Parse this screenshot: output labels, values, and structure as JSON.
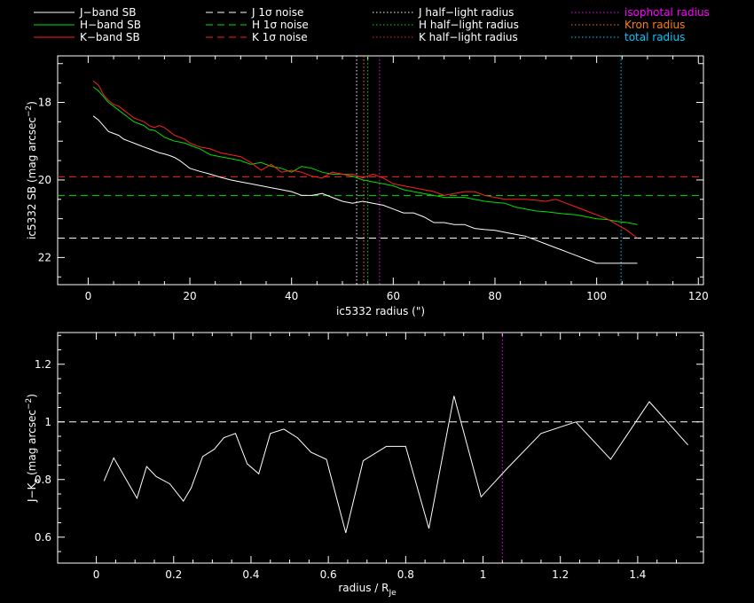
{
  "colors": {
    "background": "#000000",
    "frame": "#ffffff",
    "J": "#ffffff",
    "H": "#00e000",
    "K": "#ff2020",
    "isophotal": "#ff00ff",
    "kron": "#ff8000",
    "total": "#00c8ff"
  },
  "legend": {
    "col1": [
      {
        "label": "J−band SB",
        "style": "solid",
        "color": "#ffffff"
      },
      {
        "label": "H−band SB",
        "style": "solid",
        "color": "#00e000"
      },
      {
        "label": "K−band SB",
        "style": "solid",
        "color": "#ff2020"
      }
    ],
    "col2": [
      {
        "label": "J 1σ noise",
        "style": "dashed",
        "color": "#ffffff"
      },
      {
        "label": "H 1σ noise",
        "style": "dashed",
        "color": "#00e000"
      },
      {
        "label": "K 1σ noise",
        "style": "dashed",
        "color": "#ff2020"
      }
    ],
    "col3": [
      {
        "label": "J half−light radius",
        "style": "dotted",
        "color": "#ffffff"
      },
      {
        "label": "H half−light radius",
        "style": "dotted",
        "color": "#00e000"
      },
      {
        "label": "K half−light radius",
        "style": "dotted",
        "color": "#ff2020"
      }
    ],
    "col4": [
      {
        "label": "isophotal radius",
        "color": "#ff00ff"
      },
      {
        "label": "Kron radius",
        "color": "#ff8000"
      },
      {
        "label": "total radius",
        "color": "#00c8ff"
      }
    ]
  },
  "chart_data": [
    {
      "type": "line",
      "xlabel": "ic5332 radius (\")",
      "ylabel": "ic5332 SB (mag arcsec",
      "ylabel_sup": "−2",
      "ylabel_end": ")",
      "xlim": [
        -6,
        121
      ],
      "ylim": [
        22.7,
        16.8
      ],
      "xticks": [
        0,
        20,
        40,
        60,
        80,
        100,
        120
      ],
      "yticks": [
        18,
        20,
        22
      ],
      "series": [
        {
          "name": "J−band SB",
          "color": "#ffffff",
          "x": [
            1,
            2,
            3,
            4,
            5,
            6,
            7,
            8,
            9,
            10,
            11,
            12,
            13,
            14,
            15,
            16,
            17,
            18,
            19,
            20,
            22,
            24,
            26,
            28,
            30,
            32,
            34,
            36,
            38,
            40,
            42,
            44,
            46,
            48,
            50,
            52,
            54,
            56,
            58,
            60,
            62,
            64,
            66,
            68,
            70,
            72,
            74,
            76,
            78,
            80,
            82,
            84,
            86,
            88,
            90,
            92,
            94,
            96,
            98,
            100,
            102,
            104,
            106,
            108
          ],
          "y": [
            18.35,
            18.45,
            18.6,
            18.75,
            18.8,
            18.85,
            18.95,
            19.0,
            19.05,
            19.1,
            19.15,
            19.2,
            19.25,
            19.3,
            19.33,
            19.37,
            19.42,
            19.5,
            19.6,
            19.7,
            19.78,
            19.85,
            19.93,
            20.0,
            20.05,
            20.1,
            20.15,
            20.2,
            20.25,
            20.3,
            20.4,
            20.4,
            20.35,
            20.45,
            20.55,
            20.6,
            20.55,
            20.6,
            20.65,
            20.75,
            20.85,
            20.85,
            20.95,
            21.1,
            21.1,
            21.15,
            21.15,
            21.25,
            21.28,
            21.3,
            21.35,
            21.4,
            21.45,
            21.55,
            21.65,
            21.75,
            21.85,
            21.95,
            22.05,
            22.15,
            22.15,
            22.15,
            22.15,
            22.15
          ]
        },
        {
          "name": "H−band SB",
          "color": "#00e000",
          "x": [
            1,
            2,
            3,
            4,
            5,
            6,
            7,
            8,
            9,
            10,
            11,
            12,
            13,
            14,
            15,
            16,
            17,
            18,
            19,
            20,
            22,
            24,
            26,
            28,
            30,
            32,
            34,
            36,
            38,
            40,
            42,
            44,
            46,
            48,
            50,
            52,
            54,
            56,
            58,
            60,
            62,
            64,
            66,
            68,
            70,
            72,
            74,
            76,
            78,
            80,
            82,
            84,
            86,
            88,
            90,
            92,
            94,
            96,
            98,
            100,
            102,
            104,
            106,
            108
          ],
          "y": [
            17.6,
            17.7,
            17.85,
            18.0,
            18.1,
            18.2,
            18.3,
            18.4,
            18.5,
            18.55,
            18.6,
            18.7,
            18.72,
            18.8,
            18.9,
            18.95,
            19.0,
            19.02,
            19.05,
            19.1,
            19.2,
            19.35,
            19.4,
            19.45,
            19.5,
            19.6,
            19.55,
            19.65,
            19.7,
            19.8,
            19.65,
            19.7,
            19.8,
            19.85,
            19.85,
            19.9,
            20.0,
            20.05,
            20.1,
            20.15,
            20.25,
            20.3,
            20.35,
            20.4,
            20.45,
            20.45,
            20.45,
            20.5,
            20.55,
            20.58,
            20.6,
            20.7,
            20.75,
            20.8,
            20.82,
            20.85,
            20.88,
            20.9,
            20.95,
            21.0,
            21.02,
            21.07,
            21.1,
            21.15
          ]
        },
        {
          "name": "K−band SB",
          "color": "#ff2020",
          "x": [
            1,
            2,
            3,
            4,
            5,
            6,
            7,
            8,
            9,
            10,
            11,
            12,
            13,
            14,
            15,
            16,
            17,
            18,
            19,
            20,
            22,
            24,
            26,
            28,
            30,
            32,
            34,
            36,
            38,
            40,
            42,
            44,
            46,
            48,
            50,
            52,
            54,
            56,
            58,
            60,
            62,
            64,
            66,
            68,
            70,
            72,
            74,
            76,
            78,
            80,
            82,
            84,
            86,
            88,
            90,
            92,
            94,
            96,
            98,
            100,
            102,
            104,
            106,
            108
          ],
          "y": [
            17.45,
            17.55,
            17.8,
            17.95,
            18.05,
            18.1,
            18.2,
            18.3,
            18.4,
            18.45,
            18.5,
            18.6,
            18.65,
            18.6,
            18.65,
            18.75,
            18.85,
            18.9,
            18.95,
            19.05,
            19.15,
            19.2,
            19.3,
            19.35,
            19.4,
            19.55,
            19.75,
            19.6,
            19.8,
            19.75,
            19.8,
            19.9,
            19.95,
            19.8,
            19.85,
            19.85,
            19.95,
            19.85,
            19.95,
            20.1,
            20.15,
            20.2,
            20.25,
            20.3,
            20.4,
            20.35,
            20.3,
            20.3,
            20.4,
            20.45,
            20.5,
            20.5,
            20.5,
            20.52,
            20.55,
            20.5,
            20.6,
            20.7,
            20.8,
            20.9,
            21.0,
            21.15,
            21.3,
            21.5
          ]
        }
      ],
      "noise_levels": [
        {
          "name": "J 1σ noise",
          "color": "#ffffff",
          "y": 21.5
        },
        {
          "name": "H 1σ noise",
          "color": "#00e000",
          "y": 20.4
        },
        {
          "name": "K 1σ noise",
          "color": "#ff2020",
          "y": 19.92
        }
      ],
      "radii": [
        {
          "name": "J half−light radius",
          "color": "#ffffff",
          "x": 52.8
        },
        {
          "name": "Kron radius",
          "color": "#ff8000",
          "x": 54.2
        },
        {
          "name": "H half−light radius",
          "color": "#00e000",
          "x": 55.0
        },
        {
          "name": "isophotal radius",
          "color": "#ff00ff",
          "x": 57.3
        },
        {
          "name": "total radius",
          "color": "#00c8ff",
          "x": 104.8
        }
      ]
    },
    {
      "type": "line",
      "xlabel": "radius / R",
      "xlabel_sub": "Je",
      "ylabel": "J−K",
      "ylabel_sub": "s",
      "ylabel_mid": " (mag arcsec",
      "ylabel_sup": "−2",
      "ylabel_end": ")",
      "xlim": [
        -0.1,
        1.57
      ],
      "ylim": [
        0.51,
        1.31
      ],
      "xticks": [
        0,
        0.2,
        0.4,
        0.6,
        0.8,
        1.0,
        1.2,
        1.4
      ],
      "xtick_labels": [
        "0",
        "0.2",
        "0.4",
        "0.6",
        "0.8",
        "1",
        "1.2",
        "1.4"
      ],
      "yticks": [
        0.6,
        0.8,
        1.0,
        1.2
      ],
      "ytick_labels": [
        "0.6",
        "0.8",
        "1",
        "1.2"
      ],
      "reference_y": 1.0,
      "isophotal_x": 1.05,
      "series": [
        {
          "name": "J−K",
          "color": "#ffffff",
          "x": [
            0.02,
            0.045,
            0.105,
            0.13,
            0.155,
            0.19,
            0.225,
            0.245,
            0.275,
            0.305,
            0.33,
            0.36,
            0.39,
            0.42,
            0.45,
            0.485,
            0.52,
            0.555,
            0.595,
            0.645,
            0.69,
            0.75,
            0.8,
            0.86,
            0.925,
            0.995,
            1.06,
            1.15,
            1.24,
            1.33,
            1.43,
            1.53
          ],
          "y": [
            0.795,
            0.875,
            0.735,
            0.845,
            0.81,
            0.785,
            0.725,
            0.77,
            0.88,
            0.905,
            0.945,
            0.96,
            0.855,
            0.82,
            0.96,
            0.975,
            0.945,
            0.895,
            0.87,
            0.615,
            0.865,
            0.915,
            0.915,
            0.63,
            1.09,
            0.74,
            0.835,
            0.96,
            1.0,
            0.87,
            1.07,
            0.92
          ]
        }
      ]
    }
  ]
}
